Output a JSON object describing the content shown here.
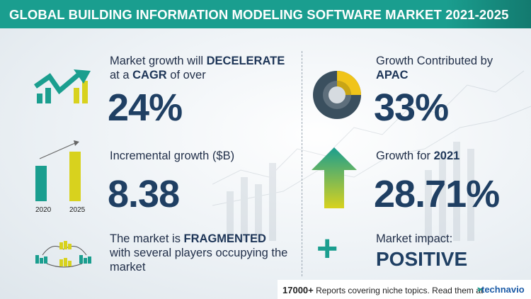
{
  "header": {
    "title": "GLOBAL BUILDING INFORMATION MODELING SOFTWARE MARKET 2021-2025"
  },
  "cagr": {
    "prefix": "Market growth will ",
    "highlight": "DECELERATE",
    "line2_prefix": "at a ",
    "line2_highlight": "CAGR",
    "line2_suffix": "  of over",
    "value": "24%"
  },
  "incremental": {
    "label": "Incremental growth ($B)",
    "value": "8.38",
    "year_start": "2020",
    "year_end": "2025"
  },
  "fragmented": {
    "prefix": "The market is ",
    "highlight": "FRAGMENTED",
    "line2": "with several players occupying the",
    "line3": "market"
  },
  "apac": {
    "label": "Growth Contributed by",
    "region": "APAC",
    "value": "33%"
  },
  "growth2021": {
    "label": "Growth for ",
    "year": "2021",
    "value": "28.71%"
  },
  "impact": {
    "label": "Market impact:",
    "value": "POSITIVE"
  },
  "footer": {
    "count": "17000+",
    "text": " Reports covering niche topics. Read them at",
    "brand": "technavio"
  },
  "colors": {
    "teal": "#1a9e8f",
    "yellow": "#d8d21e",
    "navy": "#1f3f63"
  }
}
